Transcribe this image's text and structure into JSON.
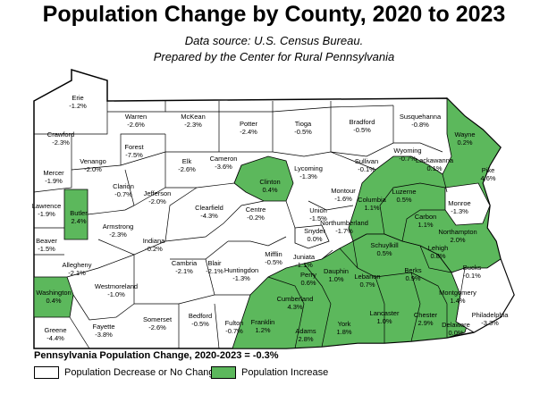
{
  "title": "Population Change by County, 2020 to 2023",
  "subtitle_line1": "Data source: U.S. Census Bureau.",
  "subtitle_line2": "Prepared by the Center for Rural Pennsylvania",
  "statewide": "Pennsylvania Population Change, 2020-2023 = -0.3%",
  "legend": {
    "decrease_label": "Population Decrease or No Change",
    "increase_label": "Population Increase",
    "decrease_color": "#ffffff",
    "increase_color": "#5cb85c"
  },
  "counties": [
    {
      "name": "Erie",
      "change": "-1.2%",
      "increase": false
    },
    {
      "name": "Warren",
      "change": "-2.6%",
      "increase": false
    },
    {
      "name": "McKean",
      "change": "-2.3%",
      "increase": false
    },
    {
      "name": "Potter",
      "change": "-2.4%",
      "increase": false
    },
    {
      "name": "Tioga",
      "change": "-0.5%",
      "increase": false
    },
    {
      "name": "Bradford",
      "change": "-0.5%",
      "increase": false
    },
    {
      "name": "Susquehanna",
      "change": "-0.8%",
      "increase": false
    },
    {
      "name": "Wayne",
      "change": "0.2%",
      "increase": true
    },
    {
      "name": "Crawford",
      "change": "-2.3%",
      "increase": false
    },
    {
      "name": "Forest",
      "change": "-7.5%",
      "increase": false
    },
    {
      "name": "Venango",
      "change": "-2.0%",
      "increase": false
    },
    {
      "name": "Elk",
      "change": "-2.6%",
      "increase": false
    },
    {
      "name": "Cameron",
      "change": "-3.6%",
      "increase": false
    },
    {
      "name": "Clinton",
      "change": "0.4%",
      "increase": true
    },
    {
      "name": "Lycoming",
      "change": "-1.3%",
      "increase": false
    },
    {
      "name": "Sullivan",
      "change": "-0.1%",
      "increase": false
    },
    {
      "name": "Wyoming",
      "change": "-0.7%",
      "increase": false
    },
    {
      "name": "Lackawanna",
      "change": "0.1%",
      "increase": true
    },
    {
      "name": "Pike",
      "change": "4.6%",
      "increase": true
    },
    {
      "name": "Mercer",
      "change": "-1.9%",
      "increase": false
    },
    {
      "name": "Clarion",
      "change": "-0.7%",
      "increase": false
    },
    {
      "name": "Jefferson",
      "change": "-2.0%",
      "increase": false
    },
    {
      "name": "Clearfield",
      "change": "-4.3%",
      "increase": false
    },
    {
      "name": "Centre",
      "change": "-0.2%",
      "increase": false
    },
    {
      "name": "Union",
      "change": "-1.5%",
      "increase": false
    },
    {
      "name": "Montour",
      "change": "-1.6%",
      "increase": false
    },
    {
      "name": "Columbia",
      "change": "1.1%",
      "increase": true
    },
    {
      "name": "Luzerne",
      "change": "0.5%",
      "increase": true
    },
    {
      "name": "Monroe",
      "change": "-1.3%",
      "increase": false
    },
    {
      "name": "Lawrence",
      "change": "-1.9%",
      "increase": false
    },
    {
      "name": "Butler",
      "change": "2.4%",
      "increase": true
    },
    {
      "name": "Armstrong",
      "change": "-2.3%",
      "increase": false
    },
    {
      "name": "Indiana",
      "change": "-0.2%",
      "increase": false
    },
    {
      "name": "Northumberland",
      "change": "-1.7%",
      "increase": false
    },
    {
      "name": "Snyder",
      "change": "0.0%",
      "increase": false
    },
    {
      "name": "Carbon",
      "change": "1.1%",
      "increase": true
    },
    {
      "name": "Northampton",
      "change": "2.0%",
      "increase": true
    },
    {
      "name": "Beaver",
      "change": "-1.5%",
      "increase": false
    },
    {
      "name": "Allegheny",
      "change": "-2.1%",
      "increase": false
    },
    {
      "name": "Cambria",
      "change": "-2.1%",
      "increase": false
    },
    {
      "name": "Blair",
      "change": "-2.1%",
      "increase": false
    },
    {
      "name": "Mifflin",
      "change": "-0.5%",
      "increase": false
    },
    {
      "name": "Juniata",
      "change": "-1.1%",
      "increase": false
    },
    {
      "name": "Schuylkill",
      "change": "0.5%",
      "increase": true
    },
    {
      "name": "Lehigh",
      "change": "0.8%",
      "increase": true
    },
    {
      "name": "Washington",
      "change": "0.4%",
      "increase": true
    },
    {
      "name": "Westmoreland",
      "change": "-1.0%",
      "increase": false
    },
    {
      "name": "Huntingdon",
      "change": "-1.3%",
      "increase": false
    },
    {
      "name": "Perry",
      "change": "0.6%",
      "increase": true
    },
    {
      "name": "Dauphin",
      "change": "1.0%",
      "increase": true
    },
    {
      "name": "Lebanon",
      "change": "0.7%",
      "increase": true
    },
    {
      "name": "Berks",
      "change": "0.9%",
      "increase": true
    },
    {
      "name": "Bucks",
      "change": "-0.1%",
      "increase": false
    },
    {
      "name": "Montgomery",
      "change": "1.4%",
      "increase": true
    },
    {
      "name": "Somerset",
      "change": "-2.6%",
      "increase": false
    },
    {
      "name": "Bedford",
      "change": "-0.5%",
      "increase": false
    },
    {
      "name": "Fulton",
      "change": "-0.7%",
      "increase": false
    },
    {
      "name": "Cumberland",
      "change": "4.3%",
      "increase": true
    },
    {
      "name": "Franklin",
      "change": "1.2%",
      "increase": true
    },
    {
      "name": "Adams",
      "change": "2.8%",
      "increase": true
    },
    {
      "name": "York",
      "change": "1.8%",
      "increase": true
    },
    {
      "name": "Lancaster",
      "change": "1.0%",
      "increase": true
    },
    {
      "name": "Chester",
      "change": "2.9%",
      "increase": true
    },
    {
      "name": "Delaware",
      "change": "0.0%",
      "increase": false
    },
    {
      "name": "Philadelphia",
      "change": "-3.3%",
      "increase": false
    },
    {
      "name": "Greene",
      "change": "-4.4%",
      "increase": false
    },
    {
      "name": "Fayette",
      "change": "-3.8%",
      "increase": false
    }
  ]
}
